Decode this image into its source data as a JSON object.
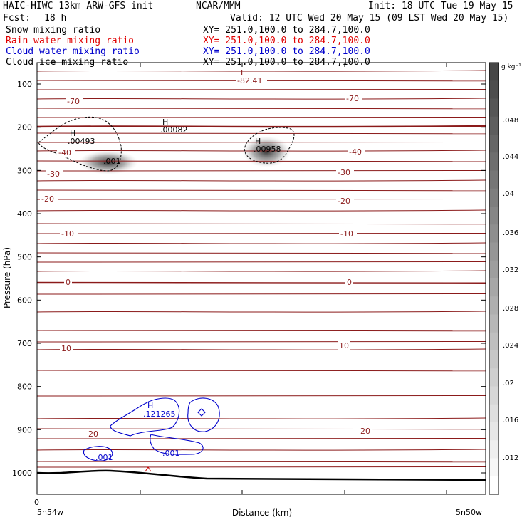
{
  "header": {
    "model": "HAIC-HIWC 13km ARW-GFS init",
    "org": "NCAR/MMM",
    "init": "Init: 18 UTC Tue 19 May 15",
    "fcst_label": "Fcst:",
    "fcst_value": "18 h",
    "valid": "Valid: 12 UTC Wed 20 May 15 (09 LST Wed 20 May 15)",
    "fields": [
      {
        "name": "Snow mixing ratio",
        "xy": "XY= 251.0,100.0 to 284.7,100.0",
        "color": "#000000"
      },
      {
        "name": "Rain water mixing ratio",
        "xy": "XY= 251.0,100.0 to 284.7,100.0",
        "color": "#e00000"
      },
      {
        "name": "Cloud water mixing ratio",
        "xy": "XY= 251.0,100.0 to 284.7,100.0",
        "color": "#0000cc"
      },
      {
        "name": "Cloud ice mixing ratio",
        "xy": "XY= 251.0,100.0 to 284.7,100.0",
        "color": "#000000"
      }
    ]
  },
  "chart_data": {
    "type": "heatmap",
    "xlabel": "Distance (km)",
    "ylabel": "Pressure (hPa)",
    "x_start_label": "5n54w",
    "x_end_label": "5n50w",
    "x_zero_label": "0",
    "y_ticks": [
      100,
      200,
      300,
      400,
      500,
      600,
      700,
      800,
      900,
      1000
    ],
    "ylim": [
      1050,
      50
    ],
    "colorbar": {
      "unit": "g kg⁻¹",
      "ticks": [
        ".048",
        ".044",
        ".04",
        ".036",
        ".032",
        ".028",
        ".024",
        ".02",
        ".016",
        ".012"
      ]
    },
    "temperature_contour_labels": [
      "-70",
      "-70",
      "-40",
      "-40",
      "-30",
      "-30",
      "-20",
      "-20",
      "-10",
      "-10",
      "0",
      "0",
      "10",
      "10",
      "20",
      "20"
    ],
    "annotations": [
      {
        "text": "L",
        "color": "#8b1a1a"
      },
      {
        "text": "-82.41",
        "color": "#8b1a1a"
      },
      {
        "text": "H",
        "color": "#000000"
      },
      {
        "text": ".00082",
        "color": "#000000"
      },
      {
        "text": "H",
        "color": "#000000"
      },
      {
        "text": ".00493",
        "color": "#000000"
      },
      {
        "text": ".001",
        "color": "#000000"
      },
      {
        "text": "H",
        "color": "#000000"
      },
      {
        "text": ".00958",
        "color": "#000000"
      },
      {
        "text": "H",
        "color": "#0000cc"
      },
      {
        "text": ".121265",
        "color": "#0000cc"
      },
      {
        "text": ".001",
        "color": "#0000cc"
      },
      {
        "text": ".001",
        "color": "#0000cc"
      }
    ],
    "colors": {
      "temperature": "#8b1a1a",
      "cloud_water": "#0000cc",
      "ice": "#000000",
      "snow_shade": "#333333"
    },
    "grid": false
  }
}
